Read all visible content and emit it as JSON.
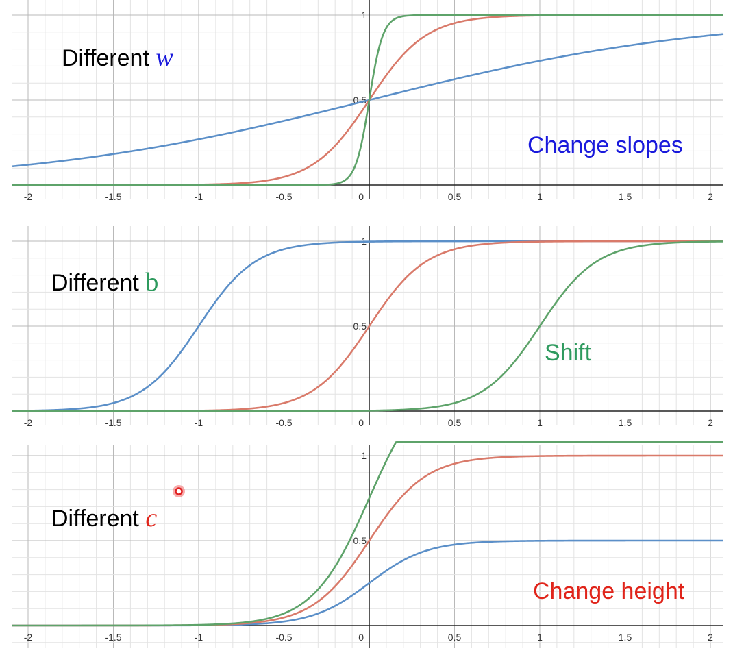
{
  "colors": {
    "blue": "#5b8fc8",
    "red": "#d97a6a",
    "green": "#5ea36a"
  },
  "chart_data": [
    {
      "type": "line",
      "annotation_prefix": "Different",
      "annotation_var": "w",
      "annotation_var_color": "#1a1adc",
      "caption": "Change slopes",
      "caption_color": "#1a1adc",
      "xlim": [
        -2.05,
        2.1
      ],
      "ylim": [
        0,
        1
      ],
      "x_ticks": [
        "-2",
        "-1.5",
        "-1",
        "-0.5",
        "0",
        "0.5",
        "1",
        "1.5",
        "2"
      ],
      "y_ticks": [
        "0.5",
        "1"
      ],
      "formula": "c / (1 + exp(-(b + w*x)))",
      "series": [
        {
          "color": "#5b8fc8",
          "w": 1,
          "b": 0,
          "c": 1
        },
        {
          "color": "#d97a6a",
          "w": 6,
          "b": 0,
          "c": 1
        },
        {
          "color": "#5ea36a",
          "w": 25,
          "b": 0,
          "c": 1
        }
      ]
    },
    {
      "type": "line",
      "annotation_prefix": "Different",
      "annotation_var": "b",
      "annotation_var_color": "#2e9a5e",
      "caption": "Shift",
      "caption_color": "#2e9a5e",
      "xlim": [
        -2.05,
        2.1
      ],
      "ylim": [
        0,
        1
      ],
      "x_ticks": [
        "-2",
        "-1.5",
        "-1",
        "-0.5",
        "0",
        "0.5",
        "1",
        "1.5",
        "2"
      ],
      "y_ticks": [
        "0.5",
        "1"
      ],
      "formula": "c / (1 + exp(-(b + w*x)))",
      "series": [
        {
          "color": "#5b8fc8",
          "w": 6,
          "b": 6,
          "c": 1
        },
        {
          "color": "#d97a6a",
          "w": 6,
          "b": 0,
          "c": 1
        },
        {
          "color": "#5ea36a",
          "w": 6,
          "b": -6,
          "c": 1
        }
      ]
    },
    {
      "type": "line",
      "annotation_prefix": "Different",
      "annotation_var": "c",
      "annotation_var_color": "#e0241a",
      "caption": "Change height",
      "caption_color": "#e0241a",
      "xlim": [
        -2.05,
        2.1
      ],
      "ylim": [
        0,
        1
      ],
      "x_ticks": [
        "-2",
        "-1.5",
        "-1",
        "-0.5",
        "0",
        "0.5",
        "1",
        "1.5",
        "2"
      ],
      "y_ticks": [
        "0.5",
        "1"
      ],
      "formula": "c / (1 + exp(-(b + w*x)))",
      "series": [
        {
          "color": "#5b8fc8",
          "w": 6,
          "b": 0,
          "c": 0.5
        },
        {
          "color": "#d97a6a",
          "w": 6,
          "b": 0,
          "c": 1
        },
        {
          "color": "#5ea36a",
          "w": 6,
          "b": 0,
          "c": 1.5
        }
      ]
    }
  ]
}
